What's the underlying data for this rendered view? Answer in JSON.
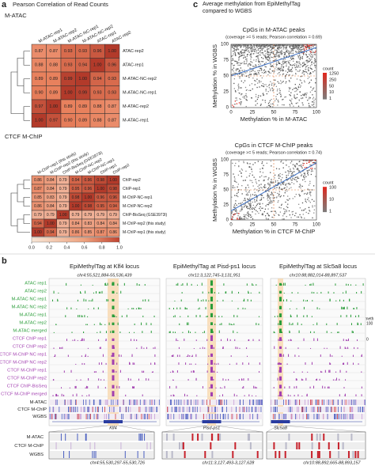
{
  "panel_a": {
    "label": "a",
    "title": "Pearson Correlation of Read Counts",
    "heatmaps": [
      {
        "title": "M-ATAC",
        "columns": [
          "M-ATAC-rep1",
          "M-ATAC-rep2",
          "M-ATAC-NC-rep1",
          "M-ATAC-NC-rep2",
          "ATAC-rep1",
          "ATAC-rep2"
        ],
        "rows": [
          "ATAC-rep2",
          "ATAC-rep1",
          "M-ATAC-NC-rep2",
          "M-ATAC-NC-rep1",
          "M-ATAC-rep2",
          "M-ATAC-rep1"
        ],
        "values": [
          [
            "0.87",
            "0.87",
            "0.93",
            "0.93",
            "0.96",
            "1.00"
          ],
          [
            "0.88",
            "0.88",
            "0.93",
            "0.94",
            "1.00",
            "0.96"
          ],
          [
            "0.89",
            "0.89",
            "0.99",
            "1.00",
            "0.94",
            "0.93"
          ],
          [
            "0.90",
            "0.89",
            "1.00",
            "0.99",
            "0.93",
            "0.93"
          ],
          [
            "0.97",
            "1.00",
            "0.89",
            "0.89",
            "0.88",
            "0.87"
          ],
          [
            "1.00",
            "0.97",
            "0.90",
            "0.89",
            "0.88",
            "0.87"
          ]
        ]
      },
      {
        "title": "CTCF M-ChIP",
        "columns": [
          "M-ChIP-rep1 (this study)",
          "M-ChIP-rep2 (this study)",
          "ChIP-BisSeq (GSE3973l)",
          "M-ChIP-NC-rep2",
          "M-ChIP-NC-rep1",
          "ChIP-rep1",
          "ChIP-rep2"
        ],
        "rows": [
          "ChIP-rep2",
          "ChIP-rep1",
          "M-ChIP-NC-rep1",
          "M-ChIP-NC-rep2",
          "ChIP-BisSeq (GSE3973l)",
          "M-ChIP-rep2 (this study)",
          "M-ChIP-rep1 (this study)"
        ],
        "values": [
          [
            "0.86",
            "0.84",
            "0.79",
            "0.94",
            "0.96",
            "0.98",
            "1.00"
          ],
          [
            "0.87",
            "0.84",
            "0.79",
            "0.95",
            "0.96",
            "1.00",
            "0.98"
          ],
          [
            "0.85",
            "0.83",
            "0.79",
            "0.98",
            "1.00",
            "0.96",
            "0.96"
          ],
          [
            "0.86",
            "0.84",
            "0.79",
            "1.00",
            "0.98",
            "0.95",
            "0.94"
          ],
          [
            "0.79",
            "0.79",
            "1.00",
            "0.79",
            "0.79",
            "0.79",
            "0.79"
          ],
          [
            "0.94",
            "1.00",
            "0.79",
            "0.84",
            "0.83",
            "0.84",
            "0.84"
          ],
          [
            "1.00",
            "0.94",
            "0.79",
            "0.86",
            "0.85",
            "0.87",
            "0.86"
          ]
        ]
      }
    ],
    "colorbar_labels": [
      "0.0",
      "0.2",
      "0.4",
      "0.6",
      "0.8",
      "1.0"
    ]
  },
  "panel_c": {
    "label": "c",
    "title": [
      "Average methylation from EpiMethylTag",
      "compared to WGBS"
    ],
    "plots": [
      {
        "title": "CpGs in M-ATAC peaks",
        "subtitle": "(coverage >= 5 reads; Pearson correlation = 0.69)",
        "xlabel": "Methylation % in M-ATAC",
        "ylabel": "Methylation % in WGBS",
        "ticks": [
          "0",
          "25",
          "50",
          "75",
          "100"
        ],
        "legend_title": "count",
        "legend_labels": [
          "1250",
          "250",
          "50",
          "10",
          "1"
        ]
      },
      {
        "title": "CpGs in CTCF M-ChIP peaks",
        "subtitle": "(coverage >= 5 reads; Pearson correlation = 0.74)",
        "xlabel": "Methylation % in CTCF M-ChIP",
        "ylabel": "Methylation % in WGBS",
        "ticks": [
          "0",
          "25",
          "50",
          "75",
          "100"
        ],
        "legend_title": "count",
        "legend_labels": [
          "100",
          "10",
          "1"
        ]
      }
    ]
  },
  "panel_b": {
    "label": "b",
    "loci": [
      {
        "title": "EpiMethylTag at Klf4 locus",
        "coordinates": "chr4:55,521,884-55,536,439",
        "gene": "Klf4",
        "zoom_coordinates": "chr4:55,530,297-55,530,726"
      },
      {
        "title": "EpiMethylTag at Pisd-ps1 locus",
        "coordinates": "chr11:3,122,745-3,131,951",
        "gene": "Pisd-ps1",
        "zoom_coordinates": "chr11:3,127,493-3,127,628"
      },
      {
        "title": "EpiMethylTag at Slc5a8 locus",
        "coordinates": "chr10:88,882,014-88,897,537",
        "gene": "Slc5a8",
        "zoom_coordinates": "chr10:88,892,665-88,893,157"
      }
    ],
    "atac_tracks": [
      "ATAC rep1",
      "ATAC rep2",
      "M-ATAC NC rep1",
      "M-ATAC NC rep2",
      "M-ATAC rep1",
      "M-ATAC rep2",
      "M-ATAC merged"
    ],
    "ctcf_tracks": [
      "CTCF ChIP rep1",
      "CTCF ChIP rep2",
      "CTCF M-ChIP NC rep1",
      "CTCF M-ChIP NC rep2",
      "CTCF M-ChIP rep1",
      "CTCF M-ChIP rep2",
      "CTCF ChIP-BisSeq",
      "CTCF M-ChIP merged"
    ],
    "methylation_tracks": [
      "M-ATAC",
      "CTCF M-ChIP",
      "WGBS"
    ],
    "zoom_rows": [
      "M-ATAC",
      "CTCF M-ChIP",
      "WGBS"
    ],
    "meth_legend": {
      "title": "% meth",
      "labels": [
        "100",
        "0"
      ]
    }
  }
}
